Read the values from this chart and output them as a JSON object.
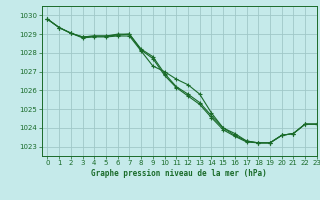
{
  "title": "Graphe pression niveau de la mer (hPa)",
  "bg_color": "#c5eaea",
  "grid_color": "#a0c8c8",
  "line_color": "#1a6b2a",
  "marker_color": "#1a6b2a",
  "xlim": [
    -0.5,
    23
  ],
  "ylim": [
    1022.5,
    1030.5
  ],
  "xticks": [
    0,
    1,
    2,
    3,
    4,
    5,
    6,
    7,
    8,
    9,
    10,
    11,
    12,
    13,
    14,
    15,
    16,
    17,
    18,
    19,
    20,
    21,
    22,
    23
  ],
  "yticks": [
    1023,
    1024,
    1025,
    1026,
    1027,
    1028,
    1029,
    1030
  ],
  "series": [
    [
      1029.8,
      1029.35,
      1029.05,
      1028.8,
      1028.85,
      1028.85,
      1028.9,
      1028.9,
      1028.1,
      1027.3,
      1027.0,
      1026.6,
      1026.3,
      1025.8,
      1024.8,
      1024.0,
      1023.7,
      1023.3,
      1023.2,
      1023.2,
      1023.6,
      1023.7,
      1024.2,
      1024.2
    ],
    [
      1029.8,
      1029.35,
      1029.05,
      1028.85,
      1028.9,
      1028.9,
      1028.95,
      1029.0,
      1028.15,
      1027.7,
      1026.8,
      1026.15,
      1025.7,
      1025.25,
      1024.55,
      1023.9,
      1023.55,
      1023.25,
      1023.2,
      1023.2,
      1023.6,
      1023.7,
      1024.2,
      1024.2
    ],
    [
      1029.8,
      1029.35,
      1029.05,
      1028.85,
      1028.9,
      1028.9,
      1029.0,
      1029.0,
      1028.2,
      1027.8,
      1026.9,
      1026.2,
      1025.8,
      1025.35,
      1024.65,
      1024.0,
      1023.6,
      1023.3,
      1023.2,
      1023.2,
      1023.6,
      1023.7,
      1024.2,
      1024.2
    ]
  ]
}
